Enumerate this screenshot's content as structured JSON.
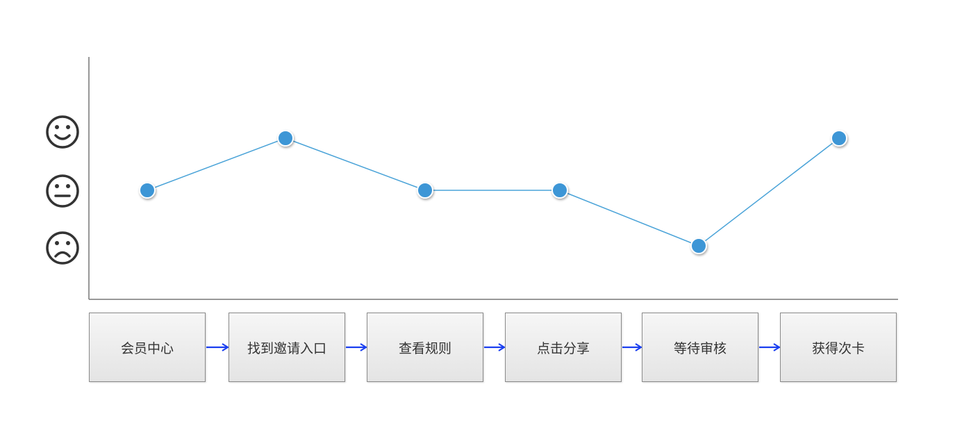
{
  "chart_data": {
    "type": "line",
    "title": "",
    "y_levels": [
      {
        "value": 1,
        "icon": "happy-face-icon"
      },
      {
        "value": 0,
        "icon": "neutral-face-icon"
      },
      {
        "value": -1,
        "icon": "sad-face-icon"
      }
    ],
    "categories": [
      "会员中心",
      "找到邀请入口",
      "查看规则",
      "点击分享",
      "等待审核",
      "获得次卡"
    ],
    "values": [
      0,
      1,
      0,
      0,
      -1,
      1
    ],
    "ylim": [
      -1,
      1
    ],
    "line_color": "#4aa3d8",
    "point_color": "#3d96d6",
    "arrow_color": "#1a3ff0"
  }
}
